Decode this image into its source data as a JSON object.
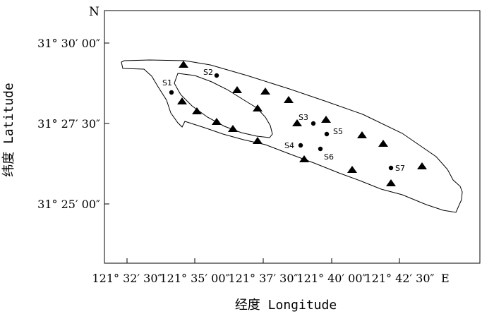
{
  "map": {
    "north_label": "N",
    "east_label": "E",
    "xlabel": "经度 Longitude",
    "ylabel": "纬度 Latitude",
    "y_ticks": [
      "31° 30′ 00″",
      "31° 27′ 30″",
      "31° 25′ 00″"
    ],
    "x_ticks": [
      "121° 32′ 30″",
      "121° 35′ 00″",
      "121° 37′ 30″",
      "121° 40′ 00″",
      "121° 42′ 30″"
    ],
    "site_labels": [
      "S1",
      "S2",
      "S3",
      "S4",
      "S5",
      "S6",
      "S7"
    ],
    "legend": []
  }
}
